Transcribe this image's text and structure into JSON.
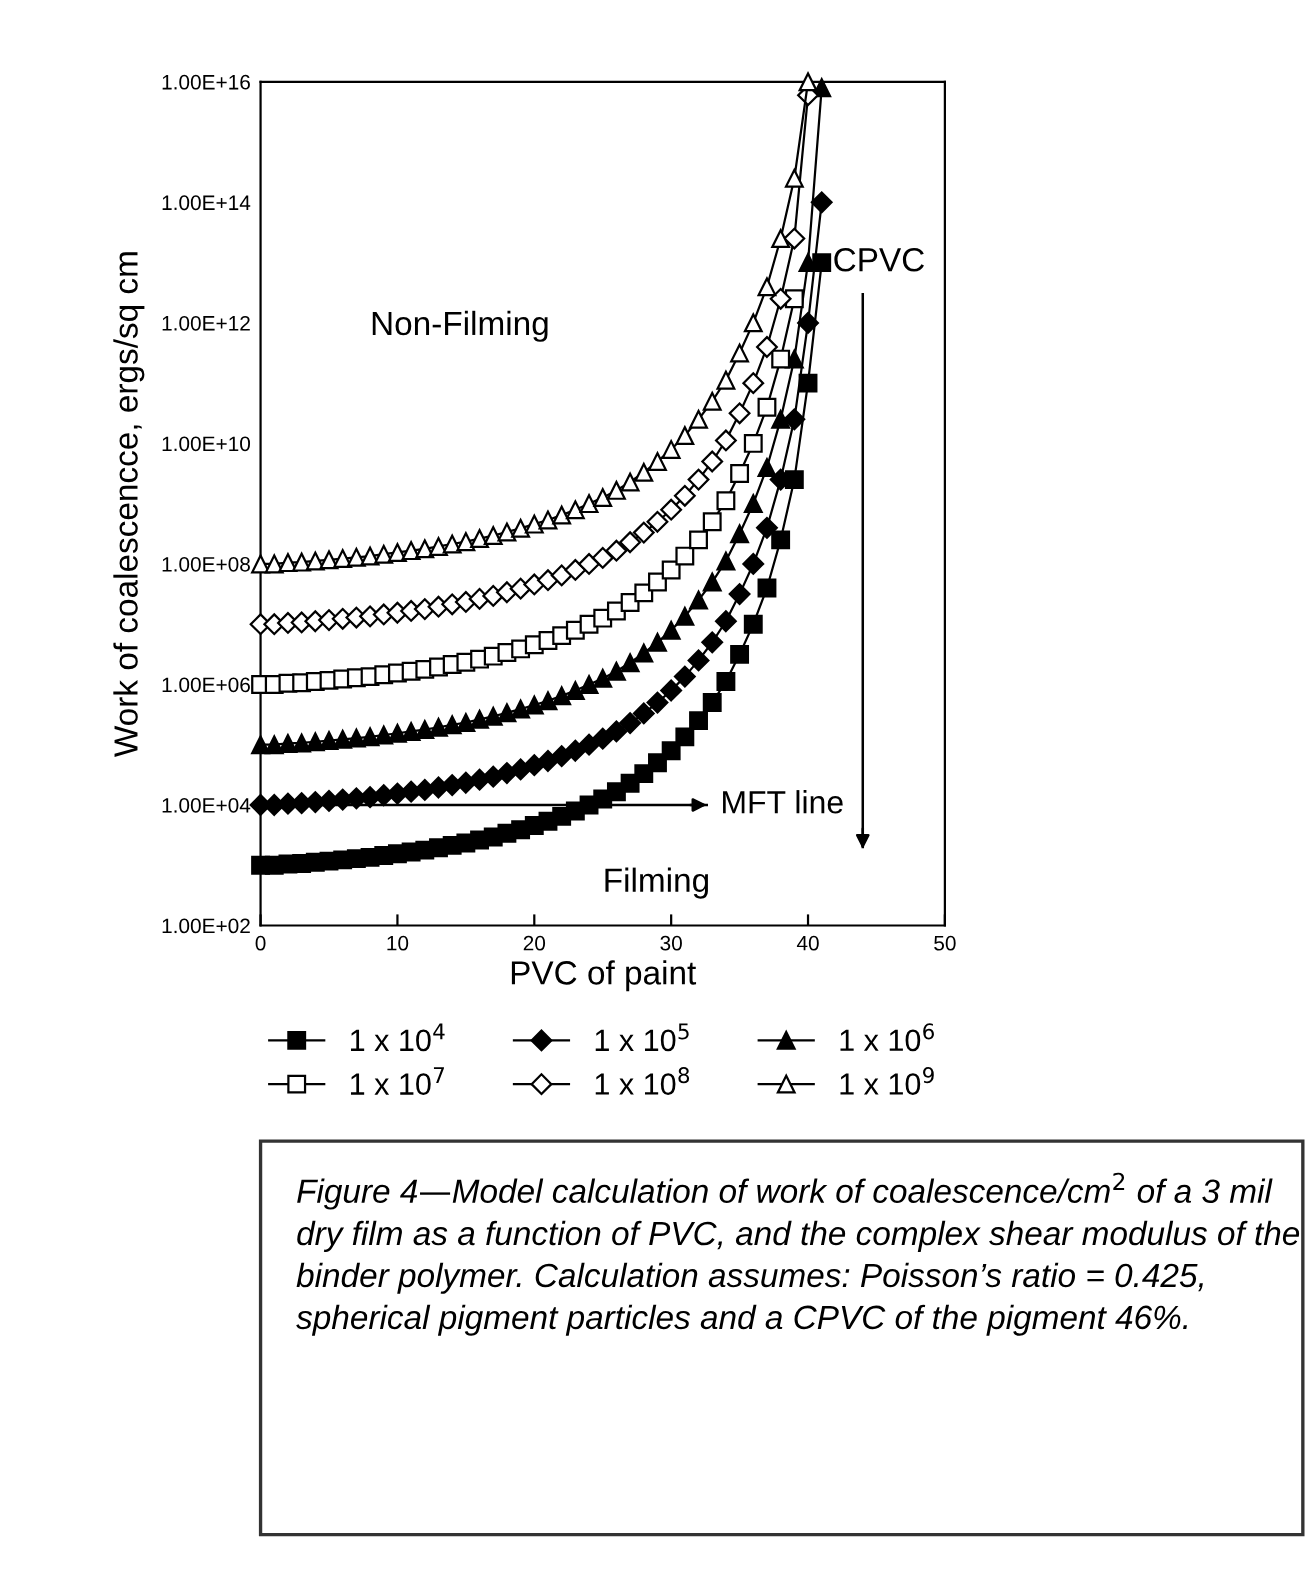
{
  "chart_data": {
    "type": "line",
    "xlabel": "PVC of paint",
    "ylabel": "Work of coalescencce, ergs/sq cm",
    "x": [
      0,
      1,
      2,
      3,
      4,
      5,
      6,
      7,
      8,
      9,
      10,
      11,
      12,
      13,
      14,
      15,
      16,
      17,
      18,
      19,
      20,
      21,
      22,
      23,
      24,
      25,
      26,
      27,
      28,
      29,
      30,
      31,
      32,
      33,
      34,
      35,
      36,
      37,
      38,
      39,
      40,
      41
    ],
    "series": [
      {
        "name": "1 x 10$^{4}$",
        "color": "#000000",
        "marker": "square",
        "values": [
          1000.0,
          1000.0,
          1050.0,
          1070.0,
          1120.0,
          1170.0,
          1230.0,
          1290.0,
          1350.0,
          1450.0,
          1550.0,
          1660.0,
          1780.0,
          1950.0,
          2140.0,
          2340.0,
          2630.0,
          2950.0,
          3390.0,
          3890.0,
          4570.0,
          5370.0,
          6460.0,
          7940.0,
          10000.0,
          12600.0,
          16600.0,
          22900.0,
          33100.0,
          50100.0,
          79400.0,
          135000.0,
          251000.0,
          501000.0,
          1120000.0,
          3160000.0,
          10000000.0,
          39800000.0,
          251000000.0,
          2510000000.0,
          100000000000.0,
          10000000000000.0
        ]
      },
      {
        "name": "1 x 10$^{5}$",
        "color": "#000000",
        "marker": "diamond",
        "values": [
          10000.0,
          10000.0,
          10500.0,
          10700.0,
          11200.0,
          11700.0,
          12300.0,
          12900.0,
          13500.0,
          14500.0,
          15500.0,
          16600.0,
          17800.0,
          19500.0,
          21400.0,
          23400.0,
          26300.0,
          29500.0,
          33900.0,
          38900.0,
          45700.0,
          53700.0,
          64600.0,
          79400.0,
          100000.0,
          126000.0,
          166000.0,
          229000.0,
          331000.0,
          501000.0,
          794000.0,
          1350000.0,
          2510000.0,
          5010000.0,
          11200000.0,
          31600000.0,
          100000000.0,
          398000000.0,
          2510000000.0,
          25100000000.0,
          1000000000000.0,
          100000000000000.0
        ]
      },
      {
        "name": "1 x 10$^{6}$",
        "color": "#000000",
        "marker": "triangle",
        "values": [
          100000.0,
          100000.0,
          105000.0,
          107000.0,
          112000.0,
          117000.0,
          123000.0,
          129000.0,
          135000.0,
          145000.0,
          155000.0,
          166000.0,
          178000.0,
          195000.0,
          214000.0,
          234000.0,
          263000.0,
          295000.0,
          339000.0,
          389000.0,
          457000.0,
          537000.0,
          646000.0,
          794000.0,
          1000000.0,
          1260000.0,
          1660000.0,
          2290000.0,
          3310000.0,
          5010000.0,
          7940000.0,
          13500000.0,
          25100000.0,
          50100000.0,
          112000000.0,
          316000000.0,
          1000000000.0,
          3980000000.0,
          25100000000.0,
          251000000000.0,
          10000000000000.0,
          8000000000000000.0
        ]
      },
      {
        "name": "1 x 10$^{7}$",
        "color": "#ffffff",
        "marker": "square",
        "values": [
          1000000.0,
          1000000.0,
          1050000.0,
          1070000.0,
          1120000.0,
          1170000.0,
          1230000.0,
          1290000.0,
          1350000.0,
          1450000.0,
          1550000.0,
          1660000.0,
          1780000.0,
          1950000.0,
          2140000.0,
          2340000.0,
          2630000.0,
          2950000.0,
          3390000.0,
          3890000.0,
          4570000.0,
          5370000.0,
          6460000.0,
          7940000.0,
          10000000.0,
          12600000.0,
          16600000.0,
          22900000.0,
          33100000.0,
          50100000.0,
          79400000.0,
          135000000.0,
          251000000.0,
          501000000.0,
          1120000000.0,
          3160000000.0,
          10000000000.0,
          39800000000.0,
          251000000000.0,
          2510000000000.0,
          null,
          null
        ]
      },
      {
        "name": "1 x 10$^{8}$",
        "color": "#ffffff",
        "marker": "diamond",
        "values": [
          10000000.0,
          10000000.0,
          10500000.0,
          10700000.0,
          11200000.0,
          11700000.0,
          12300000.0,
          12900000.0,
          13500000.0,
          14500000.0,
          15500000.0,
          16600000.0,
          17800000.0,
          19500000.0,
          21400000.0,
          23400000.0,
          26300000.0,
          29500000.0,
          33900000.0,
          38900000.0,
          45700000.0,
          53700000.0,
          64600000.0,
          79400000.0,
          100000000.0,
          126000000.0,
          166000000.0,
          229000000.0,
          331000000.0,
          501000000.0,
          794000000.0,
          1350000000.0,
          2510000000.0,
          5010000000.0,
          11200000000.0,
          31600000000.0,
          100000000000.0,
          398000000000.0,
          2510000000000.0,
          25100000000000.0,
          6000000000000000.0,
          null
        ]
      },
      {
        "name": "1 x 10$^{9}$",
        "color": "#ffffff",
        "marker": "triangle",
        "values": [
          100000000.0,
          100000000.0,
          105000000.0,
          107000000.0,
          112000000.0,
          117000000.0,
          123000000.0,
          129000000.0,
          135000000.0,
          145000000.0,
          155000000.0,
          166000000.0,
          178000000.0,
          195000000.0,
          214000000.0,
          234000000.0,
          263000000.0,
          295000000.0,
          339000000.0,
          389000000.0,
          457000000.0,
          537000000.0,
          646000000.0,
          794000000.0,
          1000000000.0,
          1260000000.0,
          1660000000.0,
          2290000000.0,
          3310000000.0,
          5010000000.0,
          7940000000.0,
          13500000000.0,
          25100000000.0,
          50100000000.0,
          112000000000.0,
          316000000000.0,
          1000000000000.0,
          3980000000000.0,
          25100000000000.0,
          251000000000000.0,
          1e+16,
          null
        ]
      }
    ],
    "log": "y",
    "xlim": [
      0,
      50
    ],
    "xticks": [
      0,
      10,
      20,
      30,
      40,
      50
    ],
    "ylim": [
      100.0,
      1e+16
    ],
    "yticks": [
      {
        "value": 100.0,
        "label": "1.00E+02"
      },
      {
        "value": 10000.0,
        "label": "1.00E+04"
      },
      {
        "value": 1000000.0,
        "label": "1.00E+06"
      },
      {
        "value": 100000000.0,
        "label": "1.00E+08"
      },
      {
        "value": 10000000000.0,
        "label": "1.00E+10"
      },
      {
        "value": 1000000000000.0,
        "label": "1.00E+12"
      },
      {
        "value": 100000000000000.0,
        "label": "1.00E+14"
      },
      {
        "value": 1e+16,
        "label": "1.00E+16"
      }
    ],
    "ref_lines": [
      {
        "axis": "y",
        "value": 10000.0,
        "label": "MFT line"
      },
      {
        "axis": "x",
        "value": 44,
        "label": "CPVC"
      }
    ],
    "annotations": [
      "Non-Filming",
      "Filming",
      "Figure 4—Model calculation of work of coalescence/cm$^{2}$ of a 3 mil dry film as a function of PVC, and the complex shear modulus of the binder polymer. Calculation assumes: Poisson’s ratio = 0.425, spherical pigment particles and a CPVC of the pigment 46%."
    ],
    "grid": false,
    "legend": "bottom",
    "line_style": "solid"
  }
}
